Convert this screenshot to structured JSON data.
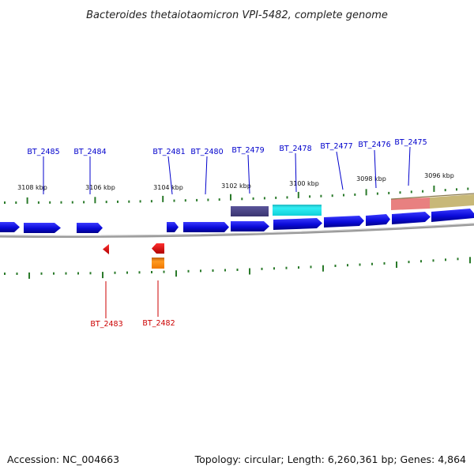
{
  "title": "Bacteroides thetaiotaomicron VPI-5482, complete genome",
  "footer": {
    "accession": "Accession: NC_004663",
    "summary": "Topology: circular; Length: 6,260,361 bp; Genes: 4,864"
  },
  "colors": {
    "forward_gene": "#0a0ad8",
    "reverse_gene": "#e00000",
    "forward_label": "#0000cc",
    "reverse_label": "#cc0000",
    "tick": "#2a7a2a",
    "backbone": "#777777",
    "feature_purple": "#4a4487",
    "feature_cyan": "#11d8e0",
    "feature_orange": "#f08000",
    "feature_pink": "#e88080",
    "feature_khaki": "#c8b878"
  },
  "scale_labels": [
    "3108 kbp",
    "3106 kbp",
    "3104 kbp",
    "3102 kbp",
    "3100 kbp",
    "3098 kbp",
    "3096 kbp"
  ],
  "forward_gene_labels": [
    "BT_2485",
    "BT_2484",
    "BT_2481",
    "BT_2480",
    "BT_2479",
    "BT_2478",
    "BT_2477",
    "BT_2476",
    "BT_2475"
  ],
  "reverse_gene_labels": [
    "BT_2483",
    "BT_2482"
  ]
}
